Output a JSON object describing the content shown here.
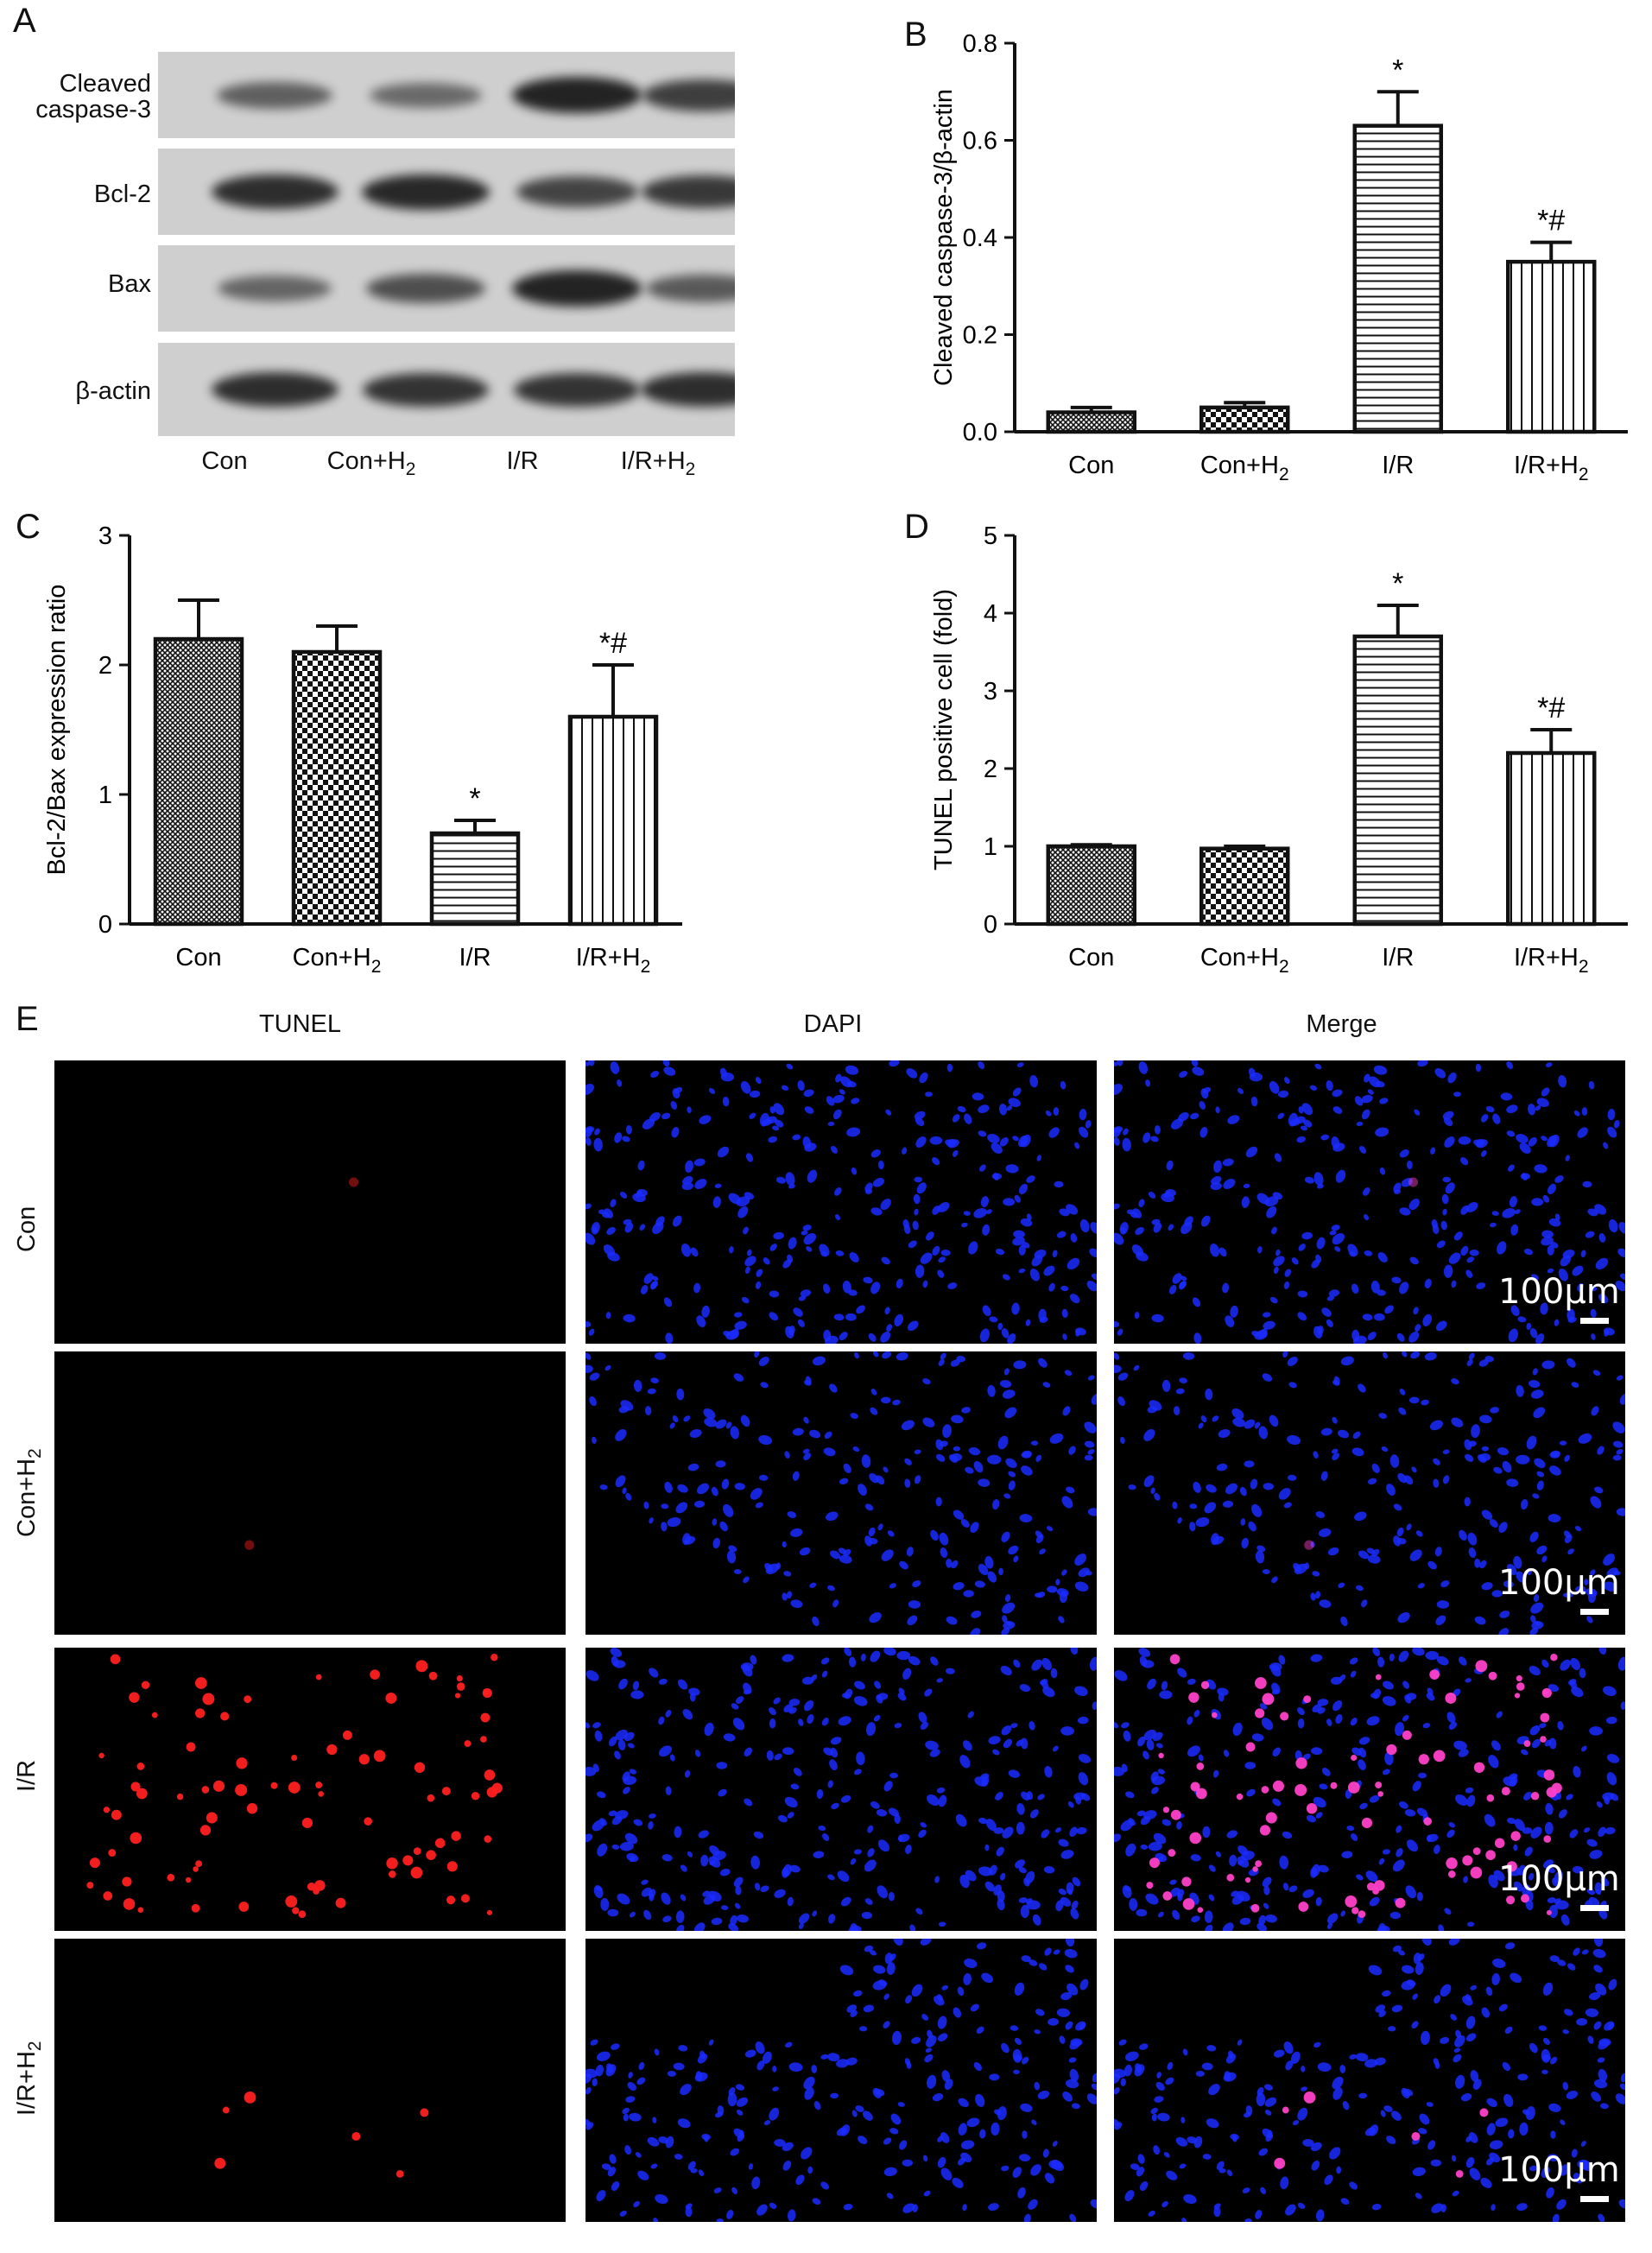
{
  "panels": {
    "a": "A",
    "b": "B",
    "c": "C",
    "d": "D",
    "e": "E"
  },
  "blot": {
    "rows": [
      {
        "label_line1": "Cleaved",
        "label_line2": "caspase-3",
        "intensity": [
          0.45,
          0.35,
          1.0,
          0.75
        ]
      },
      {
        "label_line1": "Bcl-2",
        "label_line2": "",
        "intensity": [
          0.9,
          0.95,
          0.7,
          0.8
        ]
      },
      {
        "label_line1": "Bax",
        "label_line2": "",
        "intensity": [
          0.4,
          0.6,
          1.0,
          0.5
        ]
      },
      {
        "label_line1": "β-actin",
        "label_line2": "",
        "intensity": [
          0.9,
          0.85,
          0.85,
          0.9
        ]
      }
    ],
    "lanes": [
      {
        "main": "Con",
        "sub": ""
      },
      {
        "main": "Con+H",
        "sub": "2"
      },
      {
        "main": "I/R",
        "sub": ""
      },
      {
        "main": "I/R+H",
        "sub": "2"
      }
    ]
  },
  "chart_data": [
    {
      "panel": "B",
      "type": "bar",
      "categories": [
        {
          "main": "Con",
          "sub": ""
        },
        {
          "main": "Con+H",
          "sub": "2"
        },
        {
          "main": "I/R",
          "sub": ""
        },
        {
          "main": "I/R+H",
          "sub": "2"
        }
      ],
      "values": [
        0.04,
        0.05,
        0.63,
        0.35
      ],
      "errors": [
        0.01,
        0.01,
        0.07,
        0.04
      ],
      "annotations": [
        "",
        "",
        "*",
        "*#"
      ],
      "patterns": [
        "crosshatch",
        "checker",
        "hlines",
        "vlines"
      ],
      "ylabel": "Cleaved caspase-3/β-actin",
      "xlabel": "",
      "ylim": [
        0,
        0.8
      ],
      "yticks": [
        0,
        0.2,
        0.4,
        0.6,
        0.8
      ],
      "ytick_labels": [
        "0.0",
        "0.2",
        "0.4",
        "0.6",
        "0.8"
      ]
    },
    {
      "panel": "C",
      "type": "bar",
      "categories": [
        {
          "main": "Con",
          "sub": ""
        },
        {
          "main": "Con+H",
          "sub": "2"
        },
        {
          "main": "I/R",
          "sub": ""
        },
        {
          "main": "I/R+H",
          "sub": "2"
        }
      ],
      "values": [
        2.2,
        2.1,
        0.7,
        1.6
      ],
      "errors": [
        0.3,
        0.2,
        0.1,
        0.4
      ],
      "annotations": [
        "",
        "",
        "*",
        "*#"
      ],
      "patterns": [
        "crosshatch",
        "checker",
        "hlines",
        "vlines"
      ],
      "ylabel": "Bcl-2/Bax expression ratio",
      "xlabel": "",
      "ylim": [
        0,
        3
      ],
      "yticks": [
        0,
        1,
        2,
        3
      ],
      "ytick_labels": [
        "0",
        "1",
        "2",
        "3"
      ]
    },
    {
      "panel": "D",
      "type": "bar",
      "categories": [
        {
          "main": "Con",
          "sub": ""
        },
        {
          "main": "Con+H",
          "sub": "2"
        },
        {
          "main": "I/R",
          "sub": ""
        },
        {
          "main": "I/R+H",
          "sub": "2"
        }
      ],
      "values": [
        1.0,
        0.97,
        3.7,
        2.2
      ],
      "errors": [
        0.02,
        0.03,
        0.4,
        0.3
      ],
      "annotations": [
        "",
        "",
        "*",
        "*#"
      ],
      "patterns": [
        "crosshatch",
        "checker",
        "hlines",
        "vlines"
      ],
      "ylabel": "TUNEL positive cell (fold)",
      "xlabel": "",
      "ylim": [
        0,
        5
      ],
      "yticks": [
        0,
        1,
        2,
        3,
        4,
        5
      ],
      "ytick_labels": [
        "0",
        "1",
        "2",
        "3",
        "4",
        "5"
      ]
    }
  ],
  "microscopy": {
    "columns": [
      "TUNEL",
      "DAPI",
      "Merge"
    ],
    "rows": [
      {
        "main": "Con",
        "sub": ""
      },
      {
        "main": "Con+H",
        "sub": "2"
      },
      {
        "main": "I/R",
        "sub": ""
      },
      {
        "main": "I/R+H",
        "sub": "2"
      }
    ],
    "tunel_red_dot_counts": [
      1,
      1,
      90,
      6
    ],
    "scale_bar": "100μm",
    "colors": {
      "tunel": "#ff2020",
      "dapi": "#1a2cff",
      "background": "#000000"
    }
  }
}
